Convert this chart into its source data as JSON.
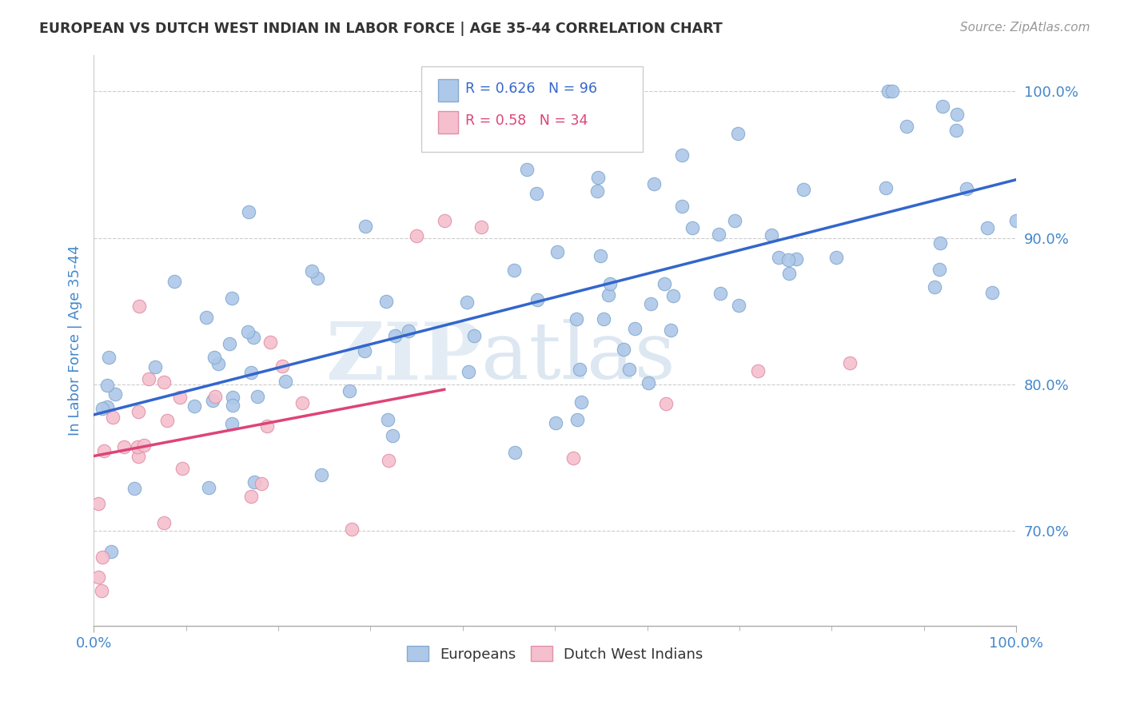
{
  "title": "EUROPEAN VS DUTCH WEST INDIAN IN LABOR FORCE | AGE 35-44 CORRELATION CHART",
  "source_text": "Source: ZipAtlas.com",
  "ylabel": "In Labor Force | Age 35-44",
  "xmin": 0.0,
  "xmax": 1.0,
  "ymin": 0.635,
  "ymax": 1.025,
  "watermark_zip": "ZIP",
  "watermark_atlas": "atlas",
  "blue_R": 0.626,
  "blue_N": 96,
  "pink_R": 0.58,
  "pink_N": 34,
  "blue_color": "#adc8e8",
  "blue_edge": "#85aad0",
  "pink_color": "#f5bfce",
  "pink_edge": "#e090a8",
  "blue_line_color": "#3366cc",
  "pink_line_color": "#dd4477",
  "background_color": "#ffffff",
  "grid_color": "#cccccc",
  "title_color": "#333333",
  "axis_label_color": "#4488cc",
  "tick_label_color": "#4488cc",
  "legend_blue_label": "Europeans",
  "legend_pink_label": "Dutch West Indians"
}
